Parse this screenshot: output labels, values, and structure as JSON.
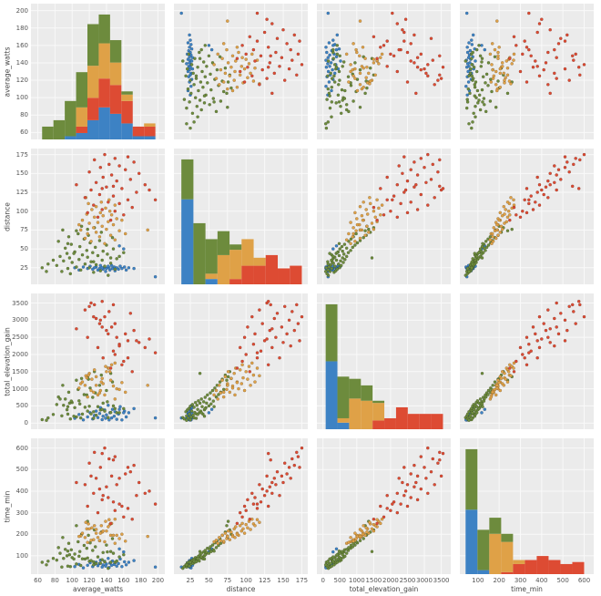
{
  "figure": {
    "panel_bg": "#ebebeb",
    "grid_color": "#f9f9f9",
    "tick_color": "#555555",
    "label_color": "#444444",
    "point_edge": "rgba(0,0,0,0.28)"
  },
  "chart_data": {
    "type": "scatter",
    "subtype": "pairplot-matrix",
    "diagonal": "stacked-histogram",
    "histogram_bins": 10,
    "stack_order": [
      "blue",
      "red",
      "orange",
      "green"
    ],
    "draw_order": [
      "blue",
      "green",
      "orange",
      "red"
    ],
    "variables": [
      {
        "name": "average_watts",
        "range": [
          52,
          208
        ],
        "ticks": [
          60,
          80,
          100,
          120,
          140,
          160,
          180,
          200
        ]
      },
      {
        "name": "distance",
        "range": [
          3,
          183
        ],
        "ticks": [
          25,
          50,
          75,
          100,
          125,
          150,
          175
        ]
      },
      {
        "name": "total_elevation_gain",
        "range": [
          -180,
          3780
        ],
        "ticks": [
          0,
          500,
          1000,
          1500,
          2000,
          2500,
          3000,
          3500
        ]
      },
      {
        "name": "time_min",
        "range": [
          15,
          645
        ],
        "ticks": [
          100,
          200,
          300,
          400,
          500,
          600
        ]
      }
    ],
    "point_fields": [
      "average_watts",
      "distance",
      "total_elevation_gain",
      "time_min"
    ],
    "groups": [
      {
        "key": "blue",
        "color": "#3d82c4",
        "points": [
          [
            197,
            13,
            150,
            48
          ],
          [
            172,
            24,
            420,
            78
          ],
          [
            166,
            25,
            300,
            70
          ],
          [
            163,
            22,
            180,
            58
          ],
          [
            161,
            26,
            350,
            72
          ],
          [
            158,
            24,
            90,
            50
          ],
          [
            156,
            27,
            480,
            85
          ],
          [
            154,
            23,
            260,
            64
          ],
          [
            152,
            25,
            110,
            52
          ],
          [
            150,
            21,
            330,
            68
          ],
          [
            149,
            26,
            200,
            60
          ],
          [
            147,
            24,
            400,
            76
          ],
          [
            146,
            28,
            150,
            56
          ],
          [
            144,
            22,
            300,
            66
          ],
          [
            143,
            25,
            90,
            46
          ],
          [
            142,
            27,
            520,
            88
          ],
          [
            140,
            24,
            240,
            62
          ],
          [
            139,
            20,
            140,
            52
          ],
          [
            138,
            26,
            380,
            74
          ],
          [
            136,
            23,
            200,
            58
          ],
          [
            135,
            25,
            100,
            48
          ],
          [
            133,
            28,
            450,
            80
          ],
          [
            132,
            24,
            280,
            64
          ],
          [
            130,
            22,
            160,
            54
          ],
          [
            128,
            26,
            350,
            70
          ],
          [
            126,
            25,
            220,
            60
          ],
          [
            124,
            23,
            120,
            50
          ],
          [
            121,
            27,
            300,
            68
          ],
          [
            118,
            24,
            180,
            56
          ],
          [
            113,
            26,
            90,
            44
          ],
          [
            108,
            22,
            250,
            60
          ],
          [
            103,
            25,
            140,
            50
          ],
          [
            155,
            54,
            400,
            132
          ],
          [
            160,
            50,
            300,
            118
          ]
        ]
      },
      {
        "key": "green",
        "color": "#6d8b3d",
        "points": [
          [
            142,
            15,
            160,
            42
          ],
          [
            98,
            17,
            120,
            50
          ],
          [
            125,
            19,
            330,
            58
          ],
          [
            88,
            20,
            210,
            48
          ],
          [
            133,
            21,
            380,
            66
          ],
          [
            110,
            22,
            150,
            55
          ],
          [
            150,
            23,
            420,
            70
          ],
          [
            95,
            24,
            260,
            52
          ],
          [
            120,
            25,
            490,
            75
          ],
          [
            105,
            26,
            180,
            62
          ],
          [
            138,
            27,
            350,
            72
          ],
          [
            82,
            28,
            540,
            80
          ],
          [
            128,
            29,
            230,
            65
          ],
          [
            115,
            30,
            460,
            85
          ],
          [
            145,
            31,
            310,
            70
          ],
          [
            100,
            32,
            600,
            92
          ],
          [
            122,
            33,
            270,
            78
          ],
          [
            90,
            34,
            520,
            88
          ],
          [
            135,
            35,
            400,
            82
          ],
          [
            108,
            36,
            650,
            98
          ],
          [
            152,
            37,
            300,
            76
          ],
          [
            97,
            38,
            580,
            105
          ],
          [
            118,
            39,
            350,
            90
          ],
          [
            86,
            40,
            700,
            112
          ],
          [
            130,
            41,
            480,
            95
          ],
          [
            112,
            42,
            260,
            86
          ],
          [
            141,
            43,
            620,
            118
          ],
          [
            94,
            44,
            390,
            100
          ],
          [
            124,
            45,
            750,
            125
          ],
          [
            103,
            46,
            450,
            108
          ],
          [
            136,
            47,
            580,
            115
          ],
          [
            117,
            48,
            820,
            135
          ],
          [
            148,
            50,
            500,
            112
          ],
          [
            92,
            51,
            700,
            130
          ],
          [
            127,
            52,
            880,
            142
          ],
          [
            109,
            53,
            560,
            120
          ],
          [
            140,
            55,
            950,
            150
          ],
          [
            99,
            56,
            640,
            128
          ],
          [
            121,
            58,
            1020,
            160
          ],
          [
            84,
            60,
            760,
            138
          ],
          [
            132,
            61,
            1100,
            170
          ],
          [
            114,
            63,
            830,
            148
          ],
          [
            147,
            65,
            1200,
            180
          ],
          [
            96,
            66,
            900,
            158
          ],
          [
            119,
            68,
            1280,
            195
          ],
          [
            107,
            70,
            980,
            165
          ],
          [
            134,
            72,
            1400,
            210
          ],
          [
            89,
            75,
            1100,
            185
          ],
          [
            126,
            78,
            1500,
            220
          ],
          [
            111,
            80,
            1300,
            200
          ],
          [
            65,
            25,
            100,
            70
          ],
          [
            72,
            30,
            150,
            75
          ],
          [
            78,
            35,
            250,
            88
          ],
          [
            155,
            40,
            300,
            95
          ],
          [
            160,
            45,
            420,
            105
          ],
          [
            70,
            20,
            80,
            58
          ],
          [
            145,
            38,
            1450,
            120
          ],
          [
            102,
            44,
            200,
            85
          ],
          [
            125,
            33,
            140,
            72
          ],
          [
            95,
            57,
            480,
            122
          ],
          [
            118,
            76,
            1350,
            260
          ],
          [
            105,
            74,
            1250,
            240
          ]
        ]
      },
      {
        "key": "orange",
        "color": "#dfa147",
        "points": [
          [
            138,
            57,
            820,
            165
          ],
          [
            122,
            60,
            950,
            172
          ],
          [
            150,
            62,
            700,
            158
          ],
          [
            115,
            64,
            1100,
            185
          ],
          [
            132,
            66,
            880,
            170
          ],
          [
            145,
            68,
            1250,
            195
          ],
          [
            118,
            70,
            760,
            162
          ],
          [
            128,
            72,
            1350,
            205
          ],
          [
            155,
            74,
            980,
            180
          ],
          [
            110,
            75,
            1150,
            192
          ],
          [
            140,
            76,
            1500,
            215
          ],
          [
            125,
            78,
            900,
            175
          ],
          [
            135,
            80,
            1300,
            210
          ],
          [
            148,
            82,
            1080,
            195
          ],
          [
            120,
            84,
            1450,
            225
          ],
          [
            130,
            85,
            820,
            185
          ],
          [
            142,
            86,
            1600,
            235
          ],
          [
            112,
            88,
            1200,
            205
          ],
          [
            152,
            90,
            1000,
            195
          ],
          [
            126,
            92,
            1550,
            240
          ],
          [
            136,
            94,
            1150,
            215
          ],
          [
            146,
            95,
            1700,
            250
          ],
          [
            117,
            96,
            1320,
            225
          ],
          [
            133,
            98,
            950,
            205
          ],
          [
            144,
            100,
            1500,
            245
          ],
          [
            123,
            102,
            1280,
            230
          ],
          [
            139,
            104,
            1650,
            260
          ],
          [
            128,
            106,
            1100,
            222
          ],
          [
            150,
            108,
            1750,
            270
          ],
          [
            119,
            110,
            1400,
            248
          ],
          [
            134,
            112,
            1200,
            240
          ],
          [
            143,
            115,
            1600,
            268
          ],
          [
            116,
            118,
            1380,
            255
          ],
          [
            158,
            88,
            1180,
            200
          ],
          [
            108,
            82,
            1020,
            190
          ],
          [
            162,
            70,
            900,
            168
          ],
          [
            188,
            75,
            1100,
            190
          ]
        ]
      },
      {
        "key": "red",
        "color": "#dd4b33",
        "points": [
          [
            145,
            88,
            1600,
            250
          ],
          [
            130,
            92,
            2200,
            300
          ],
          [
            160,
            95,
            1800,
            280
          ],
          [
            118,
            98,
            2500,
            330
          ],
          [
            150,
            100,
            2000,
            310
          ],
          [
            135,
            102,
            2800,
            360
          ],
          [
            170,
            105,
            1500,
            270
          ],
          [
            125,
            108,
            3100,
            390
          ],
          [
            155,
            110,
            2300,
            340
          ],
          [
            142,
            112,
            2600,
            370
          ],
          [
            165,
            115,
            1900,
            320
          ],
          [
            115,
            118,
            3300,
            430
          ],
          [
            148,
            120,
            2100,
            350
          ],
          [
            132,
            122,
            2900,
            410
          ],
          [
            175,
            125,
            2400,
            380
          ],
          [
            122,
            128,
            3500,
            470
          ],
          [
            158,
            130,
            1700,
            330
          ],
          [
            140,
            132,
            2700,
            420
          ],
          [
            185,
            135,
            2200,
            390
          ],
          [
            128,
            138,
            3050,
            460
          ],
          [
            152,
            140,
            2500,
            430
          ],
          [
            168,
            142,
            3200,
            490
          ],
          [
            136,
            145,
            1900,
            380
          ],
          [
            146,
            148,
            2800,
            470
          ],
          [
            178,
            150,
            2350,
            440
          ],
          [
            120,
            152,
            3400,
            530
          ],
          [
            162,
            155,
            2600,
            480
          ],
          [
            133,
            158,
            3000,
            510
          ],
          [
            155,
            160,
            2250,
            460
          ],
          [
            143,
            162,
            3250,
            550
          ],
          [
            172,
            165,
            2700,
            520
          ],
          [
            126,
            168,
            3450,
            580
          ],
          [
            150,
            170,
            2900,
            560
          ],
          [
            165,
            172,
            2400,
            510
          ],
          [
            138,
            175,
            3100,
            600
          ],
          [
            190,
            128,
            2450,
            400
          ],
          [
            197,
            115,
            2050,
            340
          ],
          [
            105,
            135,
            2750,
            440
          ],
          [
            135,
            130,
            3550,
            575
          ],
          [
            148,
            133,
            3450,
            545
          ]
        ]
      }
    ]
  }
}
